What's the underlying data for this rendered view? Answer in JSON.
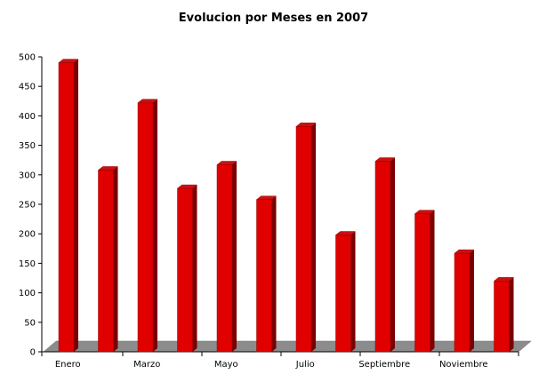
{
  "chart_data": {
    "type": "bar",
    "title": "Evolucion por Meses en 2007",
    "xlabel": "",
    "ylabel": "",
    "ylim": [
      0,
      500
    ],
    "yticks": [
      0,
      50,
      100,
      150,
      200,
      250,
      300,
      350,
      400,
      450,
      500
    ],
    "categories": [
      "Enero",
      "",
      "Marzo",
      "",
      "Mayo",
      "",
      "Julio",
      "",
      "Septiembre",
      "",
      "Noviembre",
      ""
    ],
    "values": [
      490,
      308,
      422,
      277,
      317,
      258,
      382,
      198,
      323,
      234,
      167,
      120
    ],
    "legend": "none",
    "grid": false,
    "colors": {
      "bar_front": "#e00000",
      "bar_top": "#cc1010",
      "bar_side": "#7a0000",
      "floor": "#8c8c8c"
    }
  }
}
